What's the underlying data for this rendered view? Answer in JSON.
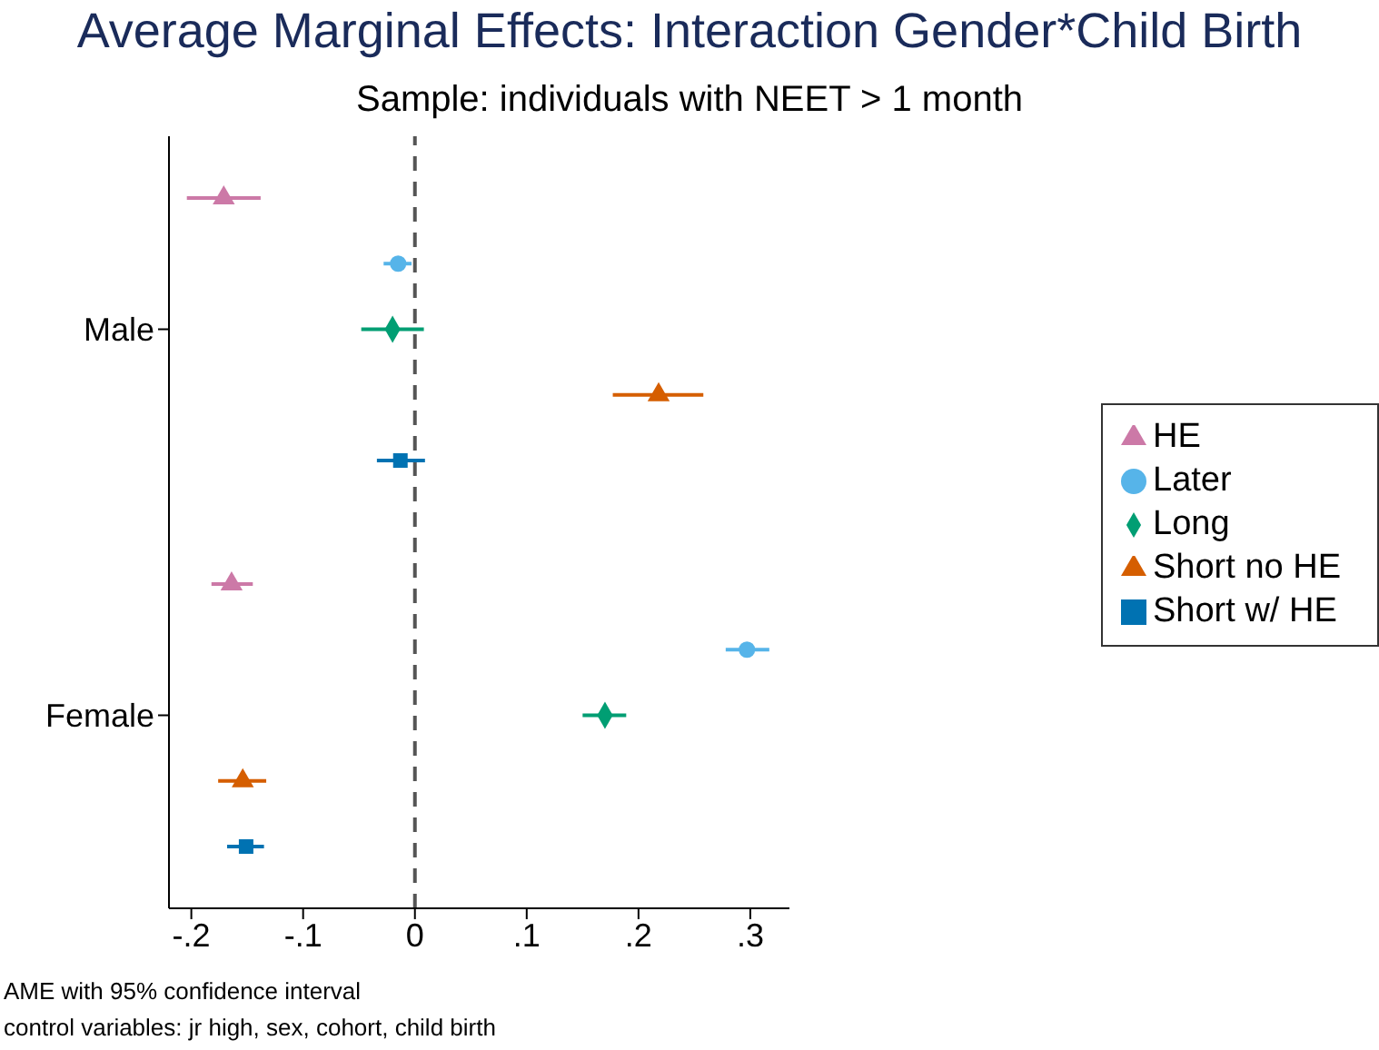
{
  "chart_data": {
    "type": "scatter",
    "title": "Average Marginal Effects: Interaction Gender*Child Birth",
    "subtitle": "Sample: individuals with NEET > 1 month",
    "orientation": "horizontal",
    "categories": [
      "Male",
      "Female"
    ],
    "series": [
      {
        "name": "HE",
        "color": "#cc79a7",
        "marker": "triangle",
        "values": [
          -0.171,
          -0.164
        ],
        "errors": [
          [
            -0.204,
            -0.138
          ],
          [
            -0.182,
            -0.145
          ]
        ]
      },
      {
        "name": "Later",
        "color": "#56b4e9",
        "marker": "circle",
        "values": [
          -0.015,
          0.297
        ],
        "errors": [
          [
            -0.028,
            -0.003
          ],
          [
            0.278,
            0.317
          ]
        ]
      },
      {
        "name": "Long",
        "color": "#009e73",
        "marker": "diamond",
        "values": [
          -0.02,
          0.17
        ],
        "errors": [
          [
            -0.048,
            0.008
          ],
          [
            0.15,
            0.189
          ]
        ]
      },
      {
        "name": "Short no HE",
        "color": "#d55e00",
        "marker": "triangle",
        "values": [
          0.218,
          -0.154
        ],
        "errors": [
          [
            0.177,
            0.258
          ],
          [
            -0.176,
            -0.133
          ]
        ]
      },
      {
        "name": "Short w/ HE",
        "color": "#0072b2",
        "marker": "square",
        "values": [
          -0.013,
          -0.151
        ],
        "errors": [
          [
            -0.034,
            0.009
          ],
          [
            -0.168,
            -0.135
          ]
        ]
      }
    ],
    "xlim": [
      -0.22,
      0.335
    ],
    "xticks": [
      {
        "value": -0.2,
        "label": "-.2"
      },
      {
        "value": -0.1,
        "label": "-.1"
      },
      0,
      {
        "value": 0.1,
        "label": ".1"
      },
      {
        "value": 0.2,
        "label": ".2"
      },
      {
        "value": 0.3,
        "label": ".3"
      }
    ],
    "ref_lines": [
      {
        "axis": "x",
        "value": 0,
        "color": "#555555",
        "line_style": "dashed"
      }
    ],
    "legend": "right",
    "grid": false,
    "annotations": [
      "AME with 95% confidence interval",
      "control variables: jr high, sex, cohort, child birth"
    ]
  }
}
